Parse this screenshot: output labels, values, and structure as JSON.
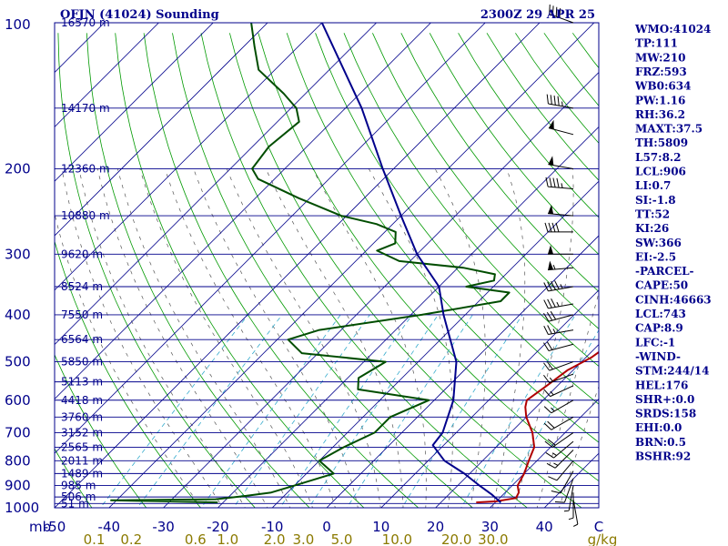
{
  "header": {
    "title": "OFJN (41024) Sounding",
    "time": "2300Z 29 APR 25"
  },
  "chart_data": {
    "type": "line",
    "subtype": "skew-t log-p sounding",
    "y_scale": "log",
    "ylim": [
      1000,
      100
    ],
    "ylabel": "mb",
    "xlim": [
      -50,
      50
    ],
    "pressure_ticks": [
      100,
      200,
      300,
      400,
      500,
      600,
      700,
      800,
      900,
      1000
    ],
    "temp_ticks": [
      -50,
      -40,
      -30,
      -20,
      -10,
      0,
      10,
      20,
      30,
      40,
      50
    ],
    "temp_tick_labels": [
      "-50",
      "-40",
      "-30",
      "-20",
      "-10",
      "0",
      "10",
      "20",
      "30",
      "40",
      "C"
    ],
    "mixing_ratio_labels": [
      "0.1",
      "0.2",
      "0.6",
      "1.0",
      "2.0",
      "3.0",
      "5.0",
      "10.0",
      "20.0",
      "30.0"
    ],
    "mixing_ratio_unit": "g/kg",
    "height_labels": [
      {
        "p": 100,
        "label": "16570 m"
      },
      {
        "p": 150,
        "label": "14170 m"
      },
      {
        "p": 200,
        "label": "12360 m"
      },
      {
        "p": 250,
        "label": "10880 m"
      },
      {
        "p": 300,
        "label": "9620 m"
      },
      {
        "p": 350,
        "label": "8524 m"
      },
      {
        "p": 400,
        "label": "7550 m"
      },
      {
        "p": 450,
        "label": "6564 m"
      },
      {
        "p": 500,
        "label": "5850 m"
      },
      {
        "p": 550,
        "label": "5113 m"
      },
      {
        "p": 600,
        "label": "4418 m"
      },
      {
        "p": 650,
        "label": "3760 m"
      },
      {
        "p": 700,
        "label": "3152 m"
      },
      {
        "p": 750,
        "label": "2565 m"
      },
      {
        "p": 800,
        "label": "2011 m"
      },
      {
        "p": 850,
        "label": "1489 m"
      },
      {
        "p": 900,
        "label": "985 m"
      },
      {
        "p": 950,
        "label": "506 m"
      },
      {
        "p": 980,
        "label": "51 m"
      }
    ],
    "series": [
      {
        "name": "Temperature",
        "color": "#b00000",
        "points": [
          [
            975,
            26.5
          ],
          [
            970,
            30
          ],
          [
            955,
            33
          ],
          [
            930,
            32.5
          ],
          [
            900,
            31
          ],
          [
            850,
            30
          ],
          [
            800,
            28.5
          ],
          [
            750,
            27
          ],
          [
            700,
            24
          ],
          [
            650,
            20
          ],
          [
            620,
            18
          ],
          [
            600,
            17
          ],
          [
            560,
            18
          ],
          [
            520,
            19
          ],
          [
            490,
            21
          ],
          [
            460,
            22
          ],
          [
            430,
            21.5
          ],
          [
            400,
            21
          ],
          [
            370,
            20
          ],
          [
            350,
            20
          ],
          [
            330,
            21
          ],
          [
            320,
            22
          ],
          [
            305,
            21.5
          ],
          [
            295,
            20.5
          ],
          [
            280,
            18
          ],
          [
            260,
            16
          ],
          [
            240,
            14
          ],
          [
            220,
            11
          ],
          [
            200,
            8
          ],
          [
            180,
            4
          ],
          [
            160,
            0
          ],
          [
            150,
            -4
          ],
          [
            140,
            -9
          ],
          [
            128,
            -15
          ],
          [
            120,
            -21
          ],
          [
            112,
            -26
          ],
          [
            104,
            -31
          ],
          [
            100,
            -33
          ]
        ]
      },
      {
        "name": "Dewpoint",
        "color": "#004d00",
        "points": [
          [
            975,
            -21
          ],
          [
            965,
            -41
          ],
          [
            960,
            -22
          ],
          [
            945,
            -17
          ],
          [
            930,
            -13
          ],
          [
            900,
            -10
          ],
          [
            850,
            -5
          ],
          [
            800,
            -10
          ],
          [
            750,
            -8
          ],
          [
            700,
            -5
          ],
          [
            650,
            -5
          ],
          [
            600,
            -1
          ],
          [
            570,
            -16
          ],
          [
            540,
            -18
          ],
          [
            500,
            -16
          ],
          [
            480,
            -33
          ],
          [
            450,
            -38
          ],
          [
            430,
            -34
          ],
          [
            400,
            -18
          ],
          [
            375,
            -6
          ],
          [
            360,
            -6
          ],
          [
            350,
            -15
          ],
          [
            340,
            -11
          ],
          [
            330,
            -12
          ],
          [
            320,
            -19
          ],
          [
            310,
            -32
          ],
          [
            295,
            -38
          ],
          [
            285,
            -36
          ],
          [
            270,
            -38
          ],
          [
            260,
            -43
          ],
          [
            250,
            -51
          ],
          [
            230,
            -62
          ],
          [
            210,
            -73
          ],
          [
            200,
            -76
          ],
          [
            180,
            -77
          ],
          [
            160,
            -76
          ],
          [
            150,
            -79
          ],
          [
            140,
            -84
          ],
          [
            125,
            -93
          ],
          [
            112,
            -98
          ],
          [
            100,
            -103
          ]
        ]
      },
      {
        "name": "Parcel",
        "color": "#00008b",
        "points": [
          [
            975,
            31
          ],
          [
            940,
            28
          ],
          [
            900,
            24
          ],
          [
            850,
            19
          ],
          [
            800,
            13
          ],
          [
            743,
            8
          ],
          [
            700,
            7.5
          ],
          [
            600,
            3.5
          ],
          [
            500,
            -3
          ],
          [
            400,
            -14
          ],
          [
            350,
            -20
          ],
          [
            300,
            -30
          ],
          [
            250,
            -40
          ],
          [
            200,
            -52
          ],
          [
            150,
            -67
          ],
          [
            100,
            -90
          ]
        ]
      }
    ],
    "wind_barbs": [
      {
        "p": 100,
        "dir": 290,
        "spd": 40
      },
      {
        "p": 150,
        "dir": 280,
        "spd": 45
      },
      {
        "p": 170,
        "dir": 285,
        "spd": 50
      },
      {
        "p": 200,
        "dir": 280,
        "spd": 50
      },
      {
        "p": 220,
        "dir": 275,
        "spd": 45
      },
      {
        "p": 250,
        "dir": 275,
        "spd": 50
      },
      {
        "p": 270,
        "dir": 270,
        "spd": 40
      },
      {
        "p": 300,
        "dir": 270,
        "spd": 50
      },
      {
        "p": 320,
        "dir": 265,
        "spd": 55
      },
      {
        "p": 350,
        "dir": 260,
        "spd": 45
      },
      {
        "p": 380,
        "dir": 260,
        "spd": 35
      },
      {
        "p": 400,
        "dir": 255,
        "spd": 30
      },
      {
        "p": 430,
        "dir": 260,
        "spd": 25
      },
      {
        "p": 460,
        "dir": 255,
        "spd": 20
      },
      {
        "p": 500,
        "dir": 250,
        "spd": 20
      },
      {
        "p": 530,
        "dir": 250,
        "spd": 15
      },
      {
        "p": 560,
        "dir": 245,
        "spd": 15
      },
      {
        "p": 600,
        "dir": 240,
        "spd": 15
      },
      {
        "p": 650,
        "dir": 240,
        "spd": 20
      },
      {
        "p": 700,
        "dir": 235,
        "spd": 20
      },
      {
        "p": 730,
        "dir": 230,
        "spd": 15
      },
      {
        "p": 760,
        "dir": 225,
        "spd": 15
      },
      {
        "p": 800,
        "dir": 220,
        "spd": 10
      },
      {
        "p": 840,
        "dir": 210,
        "spd": 10
      },
      {
        "p": 870,
        "dir": 200,
        "spd": 10
      },
      {
        "p": 900,
        "dir": 190,
        "spd": 5
      },
      {
        "p": 930,
        "dir": 180,
        "spd": 5
      },
      {
        "p": 960,
        "dir": 170,
        "spd": 5
      }
    ]
  },
  "indices": [
    "WMO:41024",
    "TP:111",
    "MW:210",
    "FRZ:593",
    "WB0:634",
    "PW:1.16",
    "RH:36.2",
    "MAXT:37.5",
    "TH:5809",
    "L57:8.2",
    "LCL:906",
    "LI:0.7",
    "SI:-1.8",
    "TT:52",
    "KI:26",
    "SW:366",
    "EI:-2.5",
    "-PARCEL-",
    "CAPE:50",
    "CINH:46663",
    "LCL:743",
    "CAP:8.9",
    "LFC:-1",
    "-WIND-",
    "STM:244/14",
    "HEL:176",
    "SHR+:0.0",
    "SRDS:158",
    "EHI:0.0",
    "BRN:0.5",
    "BSHR:92"
  ],
  "colors": {
    "isobar": "#00008b",
    "isotherm": "#00008b",
    "dry_adiabat": "#009900",
    "moist_adiabat": "#555555",
    "mixing_ratio": "#33aacc"
  }
}
